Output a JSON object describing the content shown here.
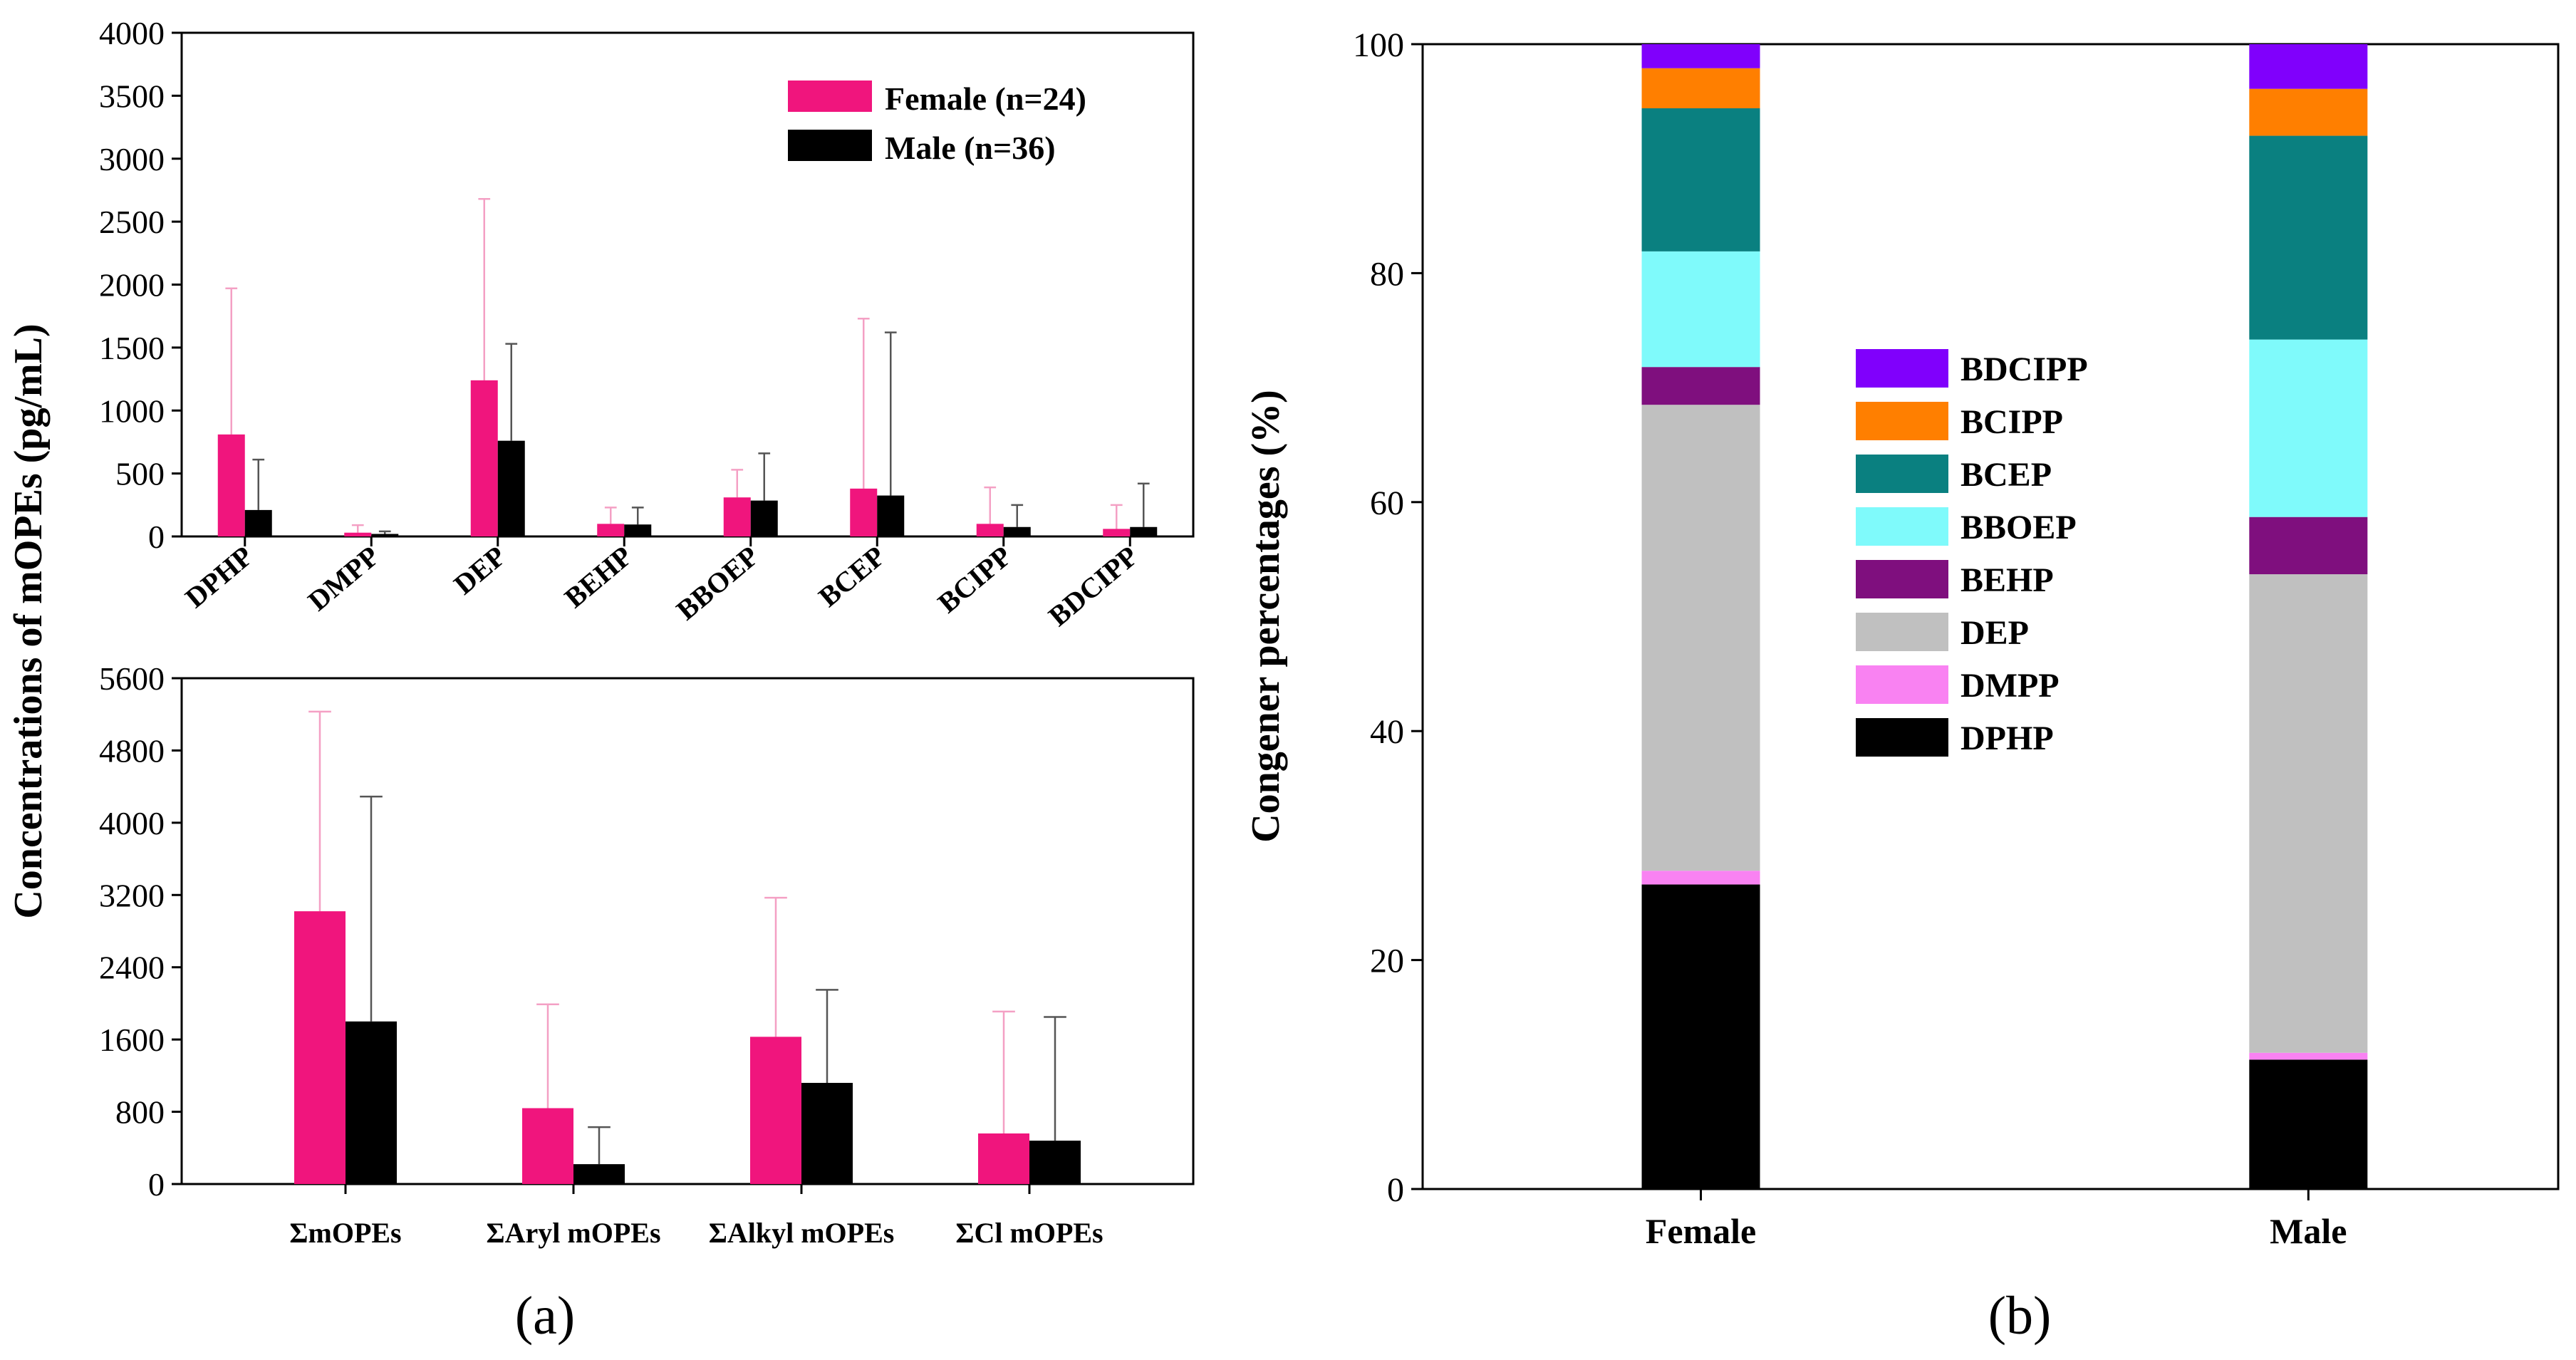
{
  "colors": {
    "female": "#f0157d",
    "male": "#000000",
    "error_female": "#f4a0c4",
    "error_male": "#555555",
    "congeners": {
      "DPHP": "#000000",
      "DMPP": "#f982f2",
      "DEP": "#c0c0c0",
      "BEHP": "#7f0f7e",
      "BBOEP": "#7ffafb",
      "BCEP": "#0a8080",
      "BCIPP": "#ff7f00",
      "BDCIPP": "#8000fc"
    }
  },
  "shared_ylabel": "Concentrations of mOPEs (pg/mL)",
  "panel_labels": {
    "a": "(a)",
    "b": "(b)"
  },
  "chart_data": [
    {
      "id": "a-top",
      "type": "bar",
      "title": "",
      "xlabel": "",
      "ylabel": "Concentrations of mOPEs (pg/mL)",
      "ylim": [
        0,
        4000
      ],
      "yticks": [
        0,
        500,
        1000,
        1500,
        2000,
        2500,
        3000,
        3500,
        4000
      ],
      "categories": [
        "DPHP",
        "DMPP",
        "DEP",
        "BEHP",
        "BBOEP",
        "BCEP",
        "BCIPP",
        "BDCIPP"
      ],
      "legend_position": "top-right",
      "series": [
        {
          "name": "Female (n=24)",
          "key": "female",
          "values": [
            810,
            30,
            1240,
            100,
            310,
            380,
            100,
            60
          ],
          "errors": [
            1970,
            90,
            2680,
            230,
            530,
            1730,
            390,
            250
          ]
        },
        {
          "name": "Male (n=36)",
          "key": "male",
          "values": [
            210,
            20,
            760,
            95,
            285,
            325,
            75,
            75
          ],
          "errors": [
            610,
            40,
            1530,
            230,
            660,
            1620,
            250,
            420
          ]
        }
      ]
    },
    {
      "id": "a-bottom",
      "type": "bar",
      "title": "",
      "xlabel": "",
      "ylabel": "Concentrations of mOPEs (pg/mL)",
      "ylim": [
        0,
        5600
      ],
      "yticks": [
        0,
        800,
        1600,
        2400,
        3200,
        4000,
        4800,
        5600
      ],
      "categories": [
        "ΣmOPEs",
        "ΣAryl mOPEs",
        "ΣAlkyl mOPEs",
        "ΣCl mOPEs"
      ],
      "series": [
        {
          "name": "Female (n=24)",
          "key": "female",
          "values": [
            3020,
            840,
            1630,
            560
          ],
          "errors": [
            5230,
            1990,
            3170,
            1910
          ]
        },
        {
          "name": "Male (n=36)",
          "key": "male",
          "values": [
            1800,
            220,
            1120,
            480
          ],
          "errors": [
            4290,
            630,
            2150,
            1850
          ]
        }
      ]
    },
    {
      "id": "b",
      "type": "bar",
      "stacked": true,
      "title": "",
      "xlabel": "",
      "ylabel": "Congener percentages (%)",
      "ylim": [
        0,
        100
      ],
      "yticks": [
        0,
        20,
        40,
        60,
        80,
        100
      ],
      "categories": [
        "Female",
        "Male"
      ],
      "legend_position": "center",
      "legend_order": [
        "BDCIPP",
        "BCIPP",
        "BCEP",
        "BBOEP",
        "BEHP",
        "DEP",
        "DMPP",
        "DPHP"
      ],
      "series": [
        {
          "name": "DPHP",
          "values": [
            26.6,
            11.3
          ]
        },
        {
          "name": "DMPP",
          "values": [
            1.2,
            0.6
          ]
        },
        {
          "name": "DEP",
          "values": [
            40.7,
            41.8
          ]
        },
        {
          "name": "BEHP",
          "values": [
            3.3,
            5.0
          ]
        },
        {
          "name": "BBOEP",
          "values": [
            10.1,
            15.5
          ]
        },
        {
          "name": "BCEP",
          "values": [
            12.5,
            17.8
          ]
        },
        {
          "name": "BCIPP",
          "values": [
            3.5,
            4.1
          ]
        },
        {
          "name": "BDCIPP",
          "values": [
            2.1,
            3.9
          ]
        }
      ]
    }
  ]
}
